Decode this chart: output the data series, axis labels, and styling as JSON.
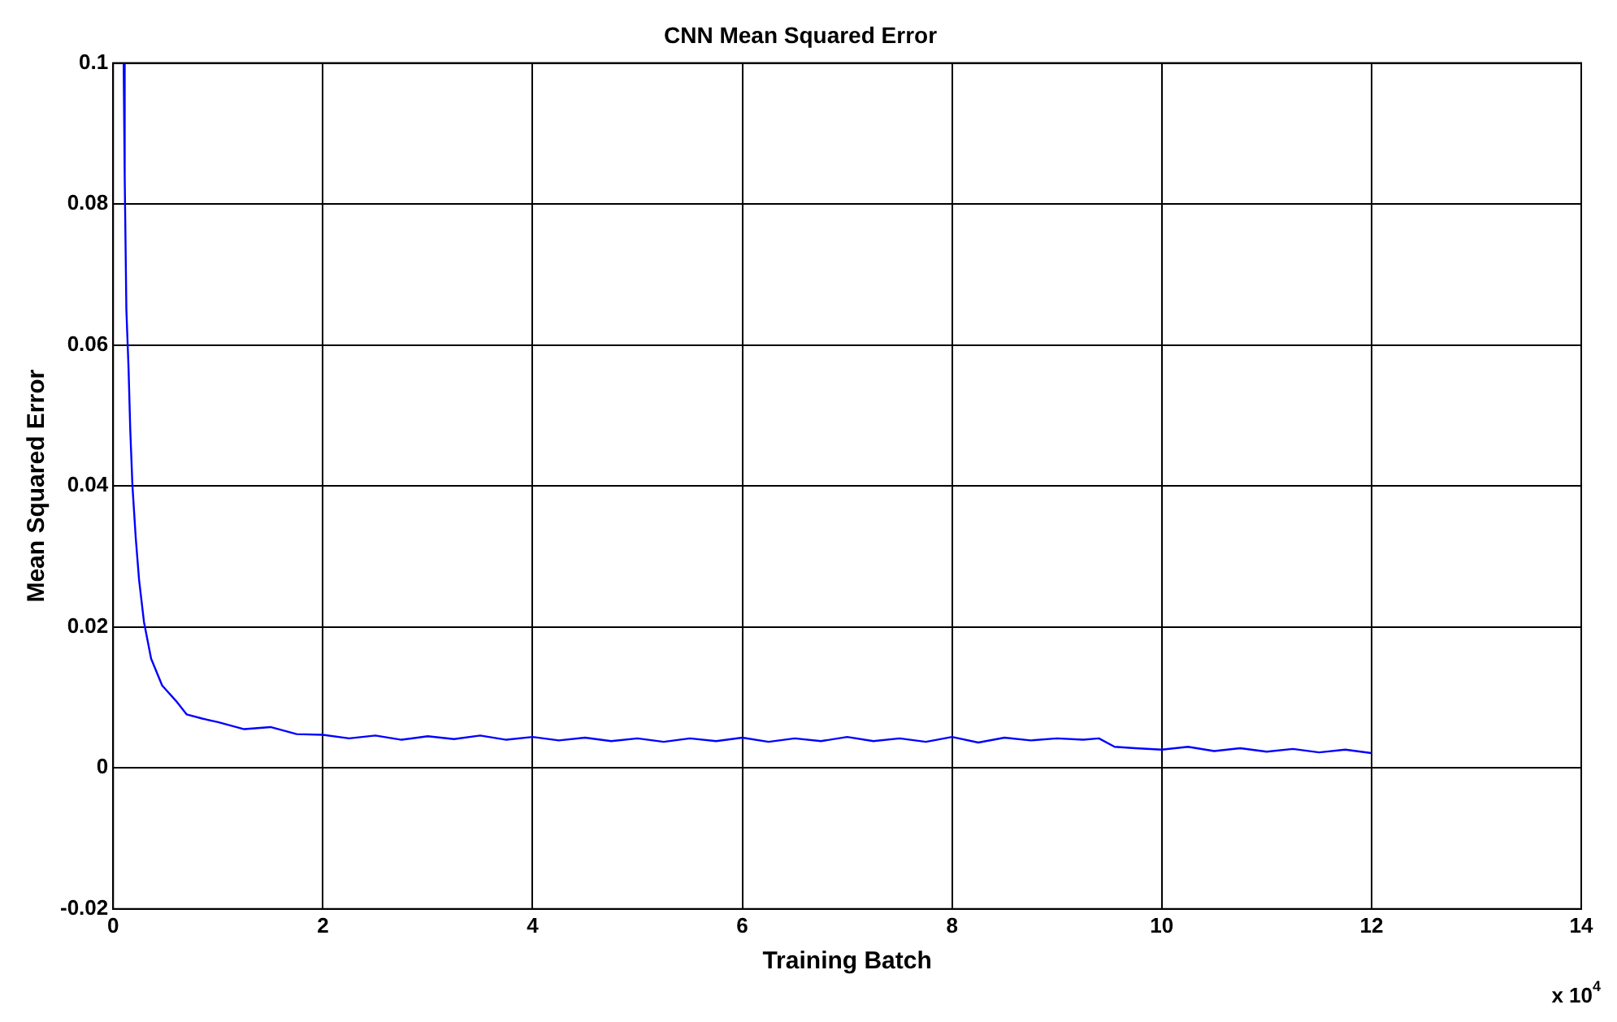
{
  "chart_data": {
    "type": "line",
    "title": "CNN Mean Squared Error",
    "xlabel": "Training Batch",
    "ylabel": "Mean Squared Error",
    "annotations": [
      "x 10$^{4}$"
    ],
    "x": [
      0.1,
      0.11,
      0.126,
      0.147,
      0.163,
      0.184,
      0.215,
      0.247,
      0.294,
      0.362,
      0.467,
      0.6,
      0.7,
      0.85,
      1.0,
      1.25,
      1.5,
      1.75,
      2.0,
      2.25,
      2.5,
      2.75,
      3.0,
      3.25,
      3.5,
      3.75,
      4.0,
      4.25,
      4.5,
      4.75,
      5.0,
      5.25,
      5.5,
      5.75,
      6.0,
      6.25,
      6.5,
      6.75,
      7.0,
      7.25,
      7.5,
      7.75,
      8.0,
      8.25,
      8.5,
      8.75,
      9.0,
      9.25,
      9.4,
      9.55,
      9.75,
      10.0,
      10.25,
      10.5,
      10.75,
      11.0,
      11.25,
      11.5,
      11.75,
      12.0
    ],
    "series": [
      {
        "color": "#0000ff",
        "values": [
          0.1,
          0.084,
          0.065,
          0.0566,
          0.048,
          0.04,
          0.0327,
          0.0267,
          0.0207,
          0.0155,
          0.0117,
          0.0095,
          0.0076,
          0.007,
          0.0065,
          0.0055,
          0.0058,
          0.0048,
          0.0047,
          0.0042,
          0.0046,
          0.004,
          0.0045,
          0.0041,
          0.0046,
          0.004,
          0.0044,
          0.0039,
          0.0043,
          0.0038,
          0.0042,
          0.0037,
          0.0042,
          0.0038,
          0.0043,
          0.0037,
          0.0042,
          0.0038,
          0.0044,
          0.0038,
          0.0042,
          0.0037,
          0.0044,
          0.0036,
          0.0043,
          0.0039,
          0.0042,
          0.004,
          0.0042,
          0.003,
          0.0028,
          0.0026,
          0.003,
          0.0024,
          0.0028,
          0.0023,
          0.0027,
          0.0022,
          0.0026,
          0.0021
        ]
      }
    ],
    "xlim": [
      0,
      14
    ],
    "xticks": [
      0,
      2,
      4,
      6,
      8,
      10,
      12,
      14
    ],
    "ylim": [
      -0.02,
      0.1
    ],
    "yticks": [
      -0.02,
      0,
      0.02,
      0.04,
      0.06,
      0.08,
      0.1
    ],
    "grid": true,
    "legend": false,
    "marker": "none",
    "line_style": "solid"
  }
}
